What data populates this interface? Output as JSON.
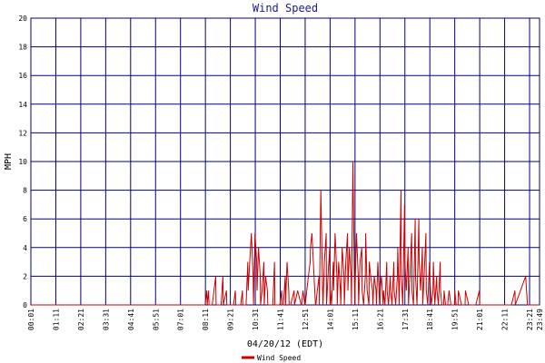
{
  "chart_data": {
    "type": "line",
    "title": "Wind Speed",
    "xlabel": "04/20/12 (EDT)",
    "ylabel": "MPH",
    "ylim": [
      0,
      20
    ],
    "y_ticks": [
      "0",
      "2",
      "4",
      "6",
      "8",
      "10",
      "12",
      "14",
      "16",
      "18",
      "20"
    ],
    "x_tick_labels": [
      "00:01",
      "01:11",
      "02:21",
      "03:31",
      "04:41",
      "05:51",
      "07:01",
      "08:11",
      "09:21",
      "10:31",
      "11:41",
      "12:51",
      "14:01",
      "15:11",
      "16:21",
      "17:31",
      "18:41",
      "19:51",
      "21:01",
      "22:11",
      "23:21",
      "23:49"
    ],
    "grid": true,
    "legend_position": "bottom-center",
    "series": [
      {
        "name": "Wind Speed",
        "color": "#cc0000",
        "x": [
          "00:01",
          "08:10",
          "08:15",
          "08:16",
          "08:20",
          "08:21",
          "08:30",
          "08:40",
          "08:41",
          "08:45",
          "08:55",
          "09:00",
          "09:01",
          "09:10",
          "09:11",
          "09:20",
          "09:30",
          "09:35",
          "09:36",
          "09:50",
          "09:55",
          "09:56",
          "10:05",
          "10:10",
          "10:11",
          "10:20",
          "10:25",
          "10:26",
          "10:30",
          "10:35",
          "10:36",
          "10:40",
          "10:45",
          "10:46",
          "10:50",
          "10:55",
          "10:56",
          "11:00",
          "11:05",
          "11:06",
          "11:10",
          "11:15",
          "11:16",
          "11:20",
          "11:25",
          "11:26",
          "11:30",
          "11:35",
          "11:36",
          "11:40",
          "11:45",
          "11:46",
          "11:50",
          "11:55",
          "11:56",
          "12:00",
          "12:05",
          "12:06",
          "12:10",
          "12:20",
          "12:21",
          "12:30",
          "12:40",
          "12:41",
          "12:45",
          "12:50",
          "12:51",
          "13:00",
          "13:05",
          "13:06",
          "13:10",
          "13:20",
          "13:21",
          "13:25",
          "13:30",
          "13:31",
          "13:35",
          "13:40",
          "13:41",
          "13:45",
          "13:50",
          "13:51",
          "13:55",
          "14:00",
          "14:01",
          "14:02",
          "14:05",
          "14:10",
          "14:11",
          "14:15",
          "14:20",
          "14:21",
          "14:25",
          "14:30",
          "14:31",
          "14:35",
          "14:40",
          "14:41",
          "14:45",
          "14:50",
          "14:51",
          "14:55",
          "15:00",
          "15:01",
          "15:05",
          "15:10",
          "15:11",
          "15:15",
          "15:20",
          "15:21",
          "15:25",
          "15:30",
          "15:31",
          "15:35",
          "15:40",
          "15:41",
          "15:45",
          "15:50",
          "15:51",
          "15:55",
          "16:00",
          "16:01",
          "16:05",
          "16:10",
          "16:11",
          "16:15",
          "16:20",
          "16:21",
          "16:25",
          "16:30",
          "16:31",
          "16:35",
          "16:40",
          "16:41",
          "16:45",
          "16:50",
          "16:51",
          "16:55",
          "17:00",
          "17:01",
          "17:05",
          "17:10",
          "17:11",
          "17:15",
          "17:20",
          "17:21",
          "17:25",
          "17:30",
          "17:31",
          "17:35",
          "17:40",
          "17:41",
          "17:45",
          "17:50",
          "17:51",
          "17:55",
          "18:00",
          "18:01",
          "18:05",
          "18:10",
          "18:11",
          "18:15",
          "18:20",
          "18:21",
          "18:25",
          "18:30",
          "18:31",
          "18:35",
          "18:40",
          "18:41",
          "18:45",
          "18:50",
          "18:51",
          "18:55",
          "19:00",
          "19:01",
          "19:05",
          "19:10",
          "19:11",
          "19:15",
          "19:20",
          "19:21",
          "19:25",
          "19:30",
          "19:31",
          "19:35",
          "19:40",
          "19:41",
          "19:45",
          "19:50",
          "19:51",
          "19:55",
          "20:00",
          "20:01",
          "20:10",
          "20:20",
          "20:21",
          "20:30",
          "20:40",
          "20:41",
          "20:50",
          "21:00",
          "21:01",
          "21:10",
          "21:20",
          "21:21",
          "21:30",
          "21:40",
          "21:41",
          "21:50",
          "22:00",
          "22:01",
          "22:10",
          "22:20",
          "22:21",
          "22:30",
          "22:40",
          "22:41",
          "23:10",
          "23:15",
          "23:16",
          "23:20",
          "23:25",
          "23:26",
          "23:30",
          "23:49"
        ],
        "y": [
          0,
          0,
          1,
          0,
          1,
          0,
          0,
          2,
          0,
          0,
          0,
          2,
          0,
          1,
          0,
          0,
          0,
          1,
          0,
          0,
          1,
          0,
          0,
          3,
          1,
          5,
          2,
          0,
          5,
          3,
          1,
          4,
          2,
          0,
          1,
          3,
          0,
          2,
          1,
          0,
          0,
          0,
          0,
          0,
          3,
          0,
          0,
          0,
          0,
          0,
          1,
          0,
          0,
          2,
          0,
          3,
          1,
          0,
          0,
          1,
          0,
          1,
          0,
          0,
          1,
          0,
          0,
          2,
          3,
          4,
          5,
          0,
          0,
          1,
          2,
          0,
          8,
          1,
          0,
          3,
          5,
          0,
          2,
          4,
          0,
          1,
          0,
          3,
          1,
          5,
          2,
          0,
          3,
          1,
          0,
          4,
          2,
          0,
          3,
          5,
          1,
          4,
          2,
          0,
          10,
          0,
          1,
          5,
          2,
          0,
          3,
          4,
          1,
          0,
          2,
          5,
          1,
          0,
          3,
          2,
          1,
          0,
          2,
          1,
          0,
          3,
          0,
          1,
          2,
          0,
          1,
          0,
          3,
          1,
          0,
          2,
          1,
          0,
          3,
          1,
          0,
          2,
          4,
          0,
          8,
          2,
          0,
          7,
          3,
          1,
          4,
          0,
          2,
          5,
          1,
          0,
          6,
          2,
          0,
          6,
          3,
          1,
          4,
          0,
          2,
          5,
          1,
          0,
          3,
          2,
          0,
          1,
          3,
          0,
          2,
          1,
          0,
          3,
          1,
          0,
          0,
          1,
          0,
          0,
          0,
          1,
          0,
          0,
          0,
          0,
          1,
          0,
          0,
          1,
          0,
          0,
          1,
          0,
          0,
          0,
          0,
          1,
          0,
          0,
          0,
          0,
          0,
          0,
          0,
          0,
          0,
          0,
          0,
          0,
          0,
          0,
          1,
          0,
          2,
          0,
          0,
          0,
          0,
          0,
          0,
          0
        ]
      }
    ]
  }
}
